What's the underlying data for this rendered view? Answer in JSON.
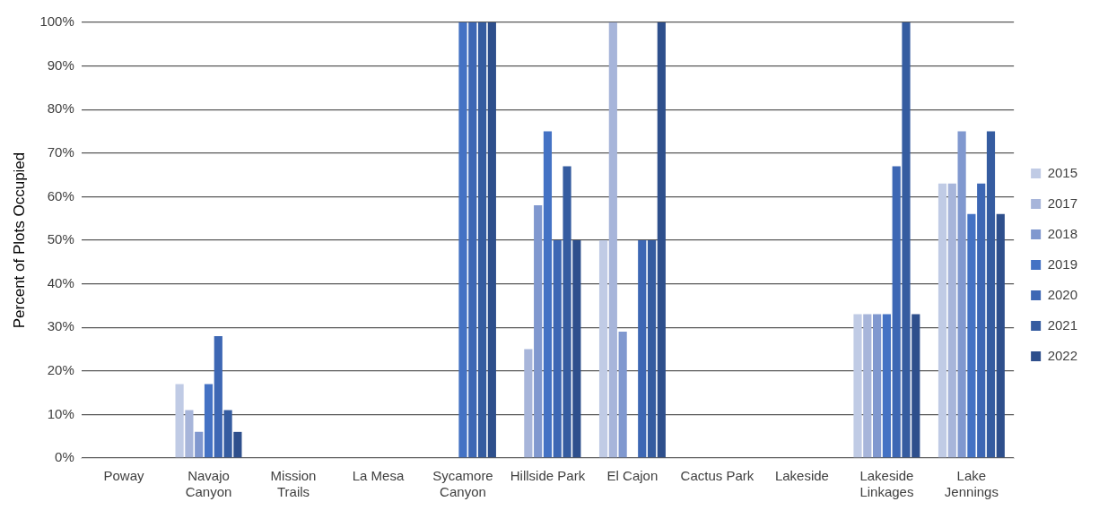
{
  "chart_data": {
    "type": "bar",
    "ylabel": "Percent of Plots Occupied",
    "categories": [
      "Poway",
      "Navajo Canyon",
      "Mission Trails",
      "La Mesa",
      "Sycamore Canyon",
      "Hillside Park",
      "El Cajon",
      "Cactus Park",
      "Lakeside",
      "Lakeside Linkages",
      "Lake Jennings"
    ],
    "series": [
      {
        "name": "2015",
        "color": "#c0cbe5",
        "values": [
          0,
          17,
          0,
          0,
          0,
          0,
          50,
          0,
          0,
          33,
          63
        ]
      },
      {
        "name": "2017",
        "color": "#a7b5da",
        "values": [
          0,
          11,
          0,
          0,
          0,
          25,
          100,
          0,
          0,
          33,
          63
        ]
      },
      {
        "name": "2018",
        "color": "#8098cf",
        "values": [
          0,
          6,
          0,
          0,
          0,
          58,
          29,
          0,
          0,
          33,
          75
        ]
      },
      {
        "name": "2019",
        "color": "#4472c4",
        "values": [
          0,
          17,
          0,
          0,
          100,
          75,
          0,
          0,
          0,
          33,
          56
        ]
      },
      {
        "name": "2020",
        "color": "#3d67b4",
        "values": [
          0,
          28,
          0,
          0,
          100,
          50,
          50,
          0,
          0,
          67,
          63
        ]
      },
      {
        "name": "2021",
        "color": "#355ca0",
        "values": [
          0,
          11,
          0,
          0,
          100,
          67,
          50,
          0,
          0,
          100,
          75
        ]
      },
      {
        "name": "2022",
        "color": "#2e4f8c",
        "values": [
          0,
          6,
          0,
          0,
          100,
          50,
          100,
          0,
          0,
          33,
          56
        ]
      }
    ],
    "ylim": [
      0,
      100
    ],
    "yticks": [
      {
        "value": 0,
        "label": "0%"
      },
      {
        "value": 10,
        "label": "10%"
      },
      {
        "value": 20,
        "label": "20%"
      },
      {
        "value": 30,
        "label": "30%"
      },
      {
        "value": 40,
        "label": "40%"
      },
      {
        "value": 50,
        "label": "50%"
      },
      {
        "value": 60,
        "label": "60%"
      },
      {
        "value": 70,
        "label": "70%"
      },
      {
        "value": 80,
        "label": "80%"
      },
      {
        "value": 90,
        "label": "90%"
      },
      {
        "value": 100,
        "label": "100%"
      }
    ],
    "grid": "y",
    "legend": "right"
  }
}
